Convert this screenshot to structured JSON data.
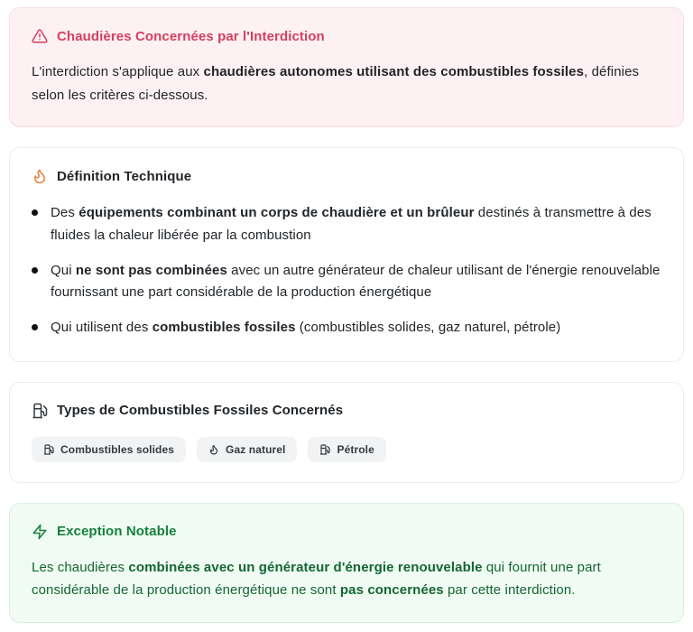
{
  "colors": {
    "warning_accent": "#d4405f",
    "warning_bg": "#fdf1f3",
    "flame_accent": "#e8813d",
    "success_accent": "#15803d",
    "success_body_text": "#166534",
    "success_bg": "#effbf3",
    "chip_bg": "#f1f3f5",
    "body_text": "#212529"
  },
  "cards": {
    "warning": {
      "icon": "alert-triangle-icon",
      "title": "Chaudières Concernées par l'Interdiction",
      "body": [
        {
          "text": "L'interdiction s'applique aux ",
          "bold": false
        },
        {
          "text": "chaudières autonomes utilisant des combustibles fossiles",
          "bold": true
        },
        {
          "text": ", définies selon les critères ci-dessous.",
          "bold": false
        }
      ]
    },
    "definition": {
      "icon": "flame-icon",
      "title": "Définition Technique",
      "bullets": [
        {
          "segments": [
            {
              "text": "Des ",
              "bold": false
            },
            {
              "text": "équipements combinant un corps de chaudière et un brûleur",
              "bold": true
            },
            {
              "text": " destinés à transmettre à des fluides la chaleur libérée par la combustion",
              "bold": false
            }
          ]
        },
        {
          "segments": [
            {
              "text": "Qui ",
              "bold": false
            },
            {
              "text": "ne sont pas combinées",
              "bold": true
            },
            {
              "text": " avec un autre générateur de chaleur utilisant de l'énergie renouvelable fournissant une part considérable de la production énergétique",
              "bold": false
            }
          ]
        },
        {
          "segments": [
            {
              "text": "Qui utilisent des ",
              "bold": false
            },
            {
              "text": "combustibles fossiles",
              "bold": true
            },
            {
              "text": " (combustibles solides, gaz naturel, pétrole)",
              "bold": false
            }
          ]
        }
      ]
    },
    "fuels": {
      "icon": "fuel-pump-icon",
      "title": "Types de Combustibles Fossiles Concernés",
      "chips": [
        {
          "icon": "fuel-pump-icon",
          "label": "Combustibles solides"
        },
        {
          "icon": "flame-icon",
          "label": "Gaz naturel"
        },
        {
          "icon": "fuel-pump-icon",
          "label": "Pétrole"
        }
      ]
    },
    "exception": {
      "icon": "zap-icon",
      "title": "Exception Notable",
      "body": [
        {
          "text": "Les chaudières ",
          "bold": false
        },
        {
          "text": "combinées avec un générateur d'énergie renouvelable",
          "bold": true
        },
        {
          "text": " qui fournit une part considérable de la production énergétique ne sont ",
          "bold": false
        },
        {
          "text": "pas concernées",
          "bold": true
        },
        {
          "text": " par cette interdiction.",
          "bold": false
        }
      ]
    }
  }
}
